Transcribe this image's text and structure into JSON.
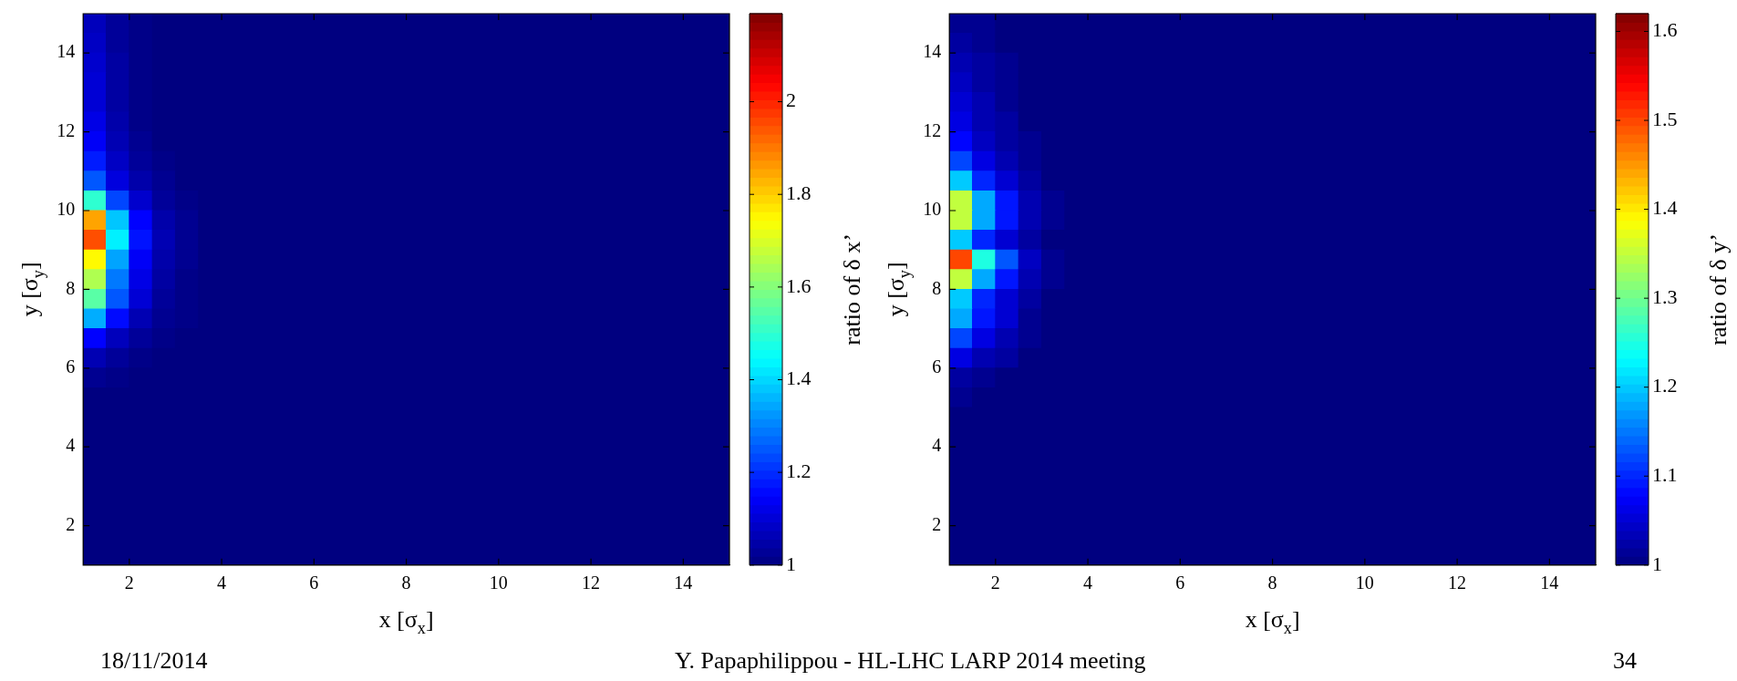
{
  "chart_data": [
    {
      "type": "heatmap",
      "xlabel": "x [σ$_{x}$]",
      "ylabel": "y [σ$_{y}$]",
      "clabel": "ratio of δ x’",
      "xlim": [
        1,
        15
      ],
      "ylim": [
        1,
        15
      ],
      "xticks": [
        2,
        4,
        6,
        8,
        10,
        12,
        14
      ],
      "yticks": [
        2,
        4,
        6,
        8,
        10,
        12,
        14
      ],
      "clim": [
        1,
        2.19
      ],
      "cticks": [
        1,
        1.2,
        1.4,
        1.6,
        1.8,
        2
      ],
      "annotations": [
        "18/11/2014",
        "Y. Papaphilippou - HL-LHC LARP 2014 meeting",
        "34"
      ],
      "x": [
        1.25,
        1.75,
        2.25,
        2.75,
        3.25,
        3.75,
        4.25,
        4.75,
        5.25,
        5.75,
        6.25,
        6.75,
        7.25,
        7.75,
        8.25,
        8.75,
        9.25,
        9.75,
        10.25,
        10.75,
        11.25,
        11.75,
        12.25,
        12.75,
        13.25,
        13.75,
        14.25,
        14.75
      ],
      "y": [
        14.75,
        14.25,
        13.75,
        13.25,
        12.75,
        12.25,
        11.75,
        11.25,
        10.75,
        10.25,
        9.75,
        9.25,
        8.75,
        8.25,
        7.75,
        7.25,
        6.75,
        6.25,
        5.75,
        5.25,
        4.75,
        4.25,
        3.75,
        3.25,
        2.75,
        2.25,
        1.75,
        1.25
      ],
      "cells": [
        [
          1.07,
          1.03,
          1.01,
          1,
          1,
          1,
          1,
          1,
          1,
          1,
          1,
          1,
          1,
          1,
          1,
          1,
          1,
          1,
          1,
          1,
          1,
          1,
          1,
          1,
          1,
          1,
          1,
          1
        ],
        [
          1.08,
          1.03,
          1.01,
          1,
          1,
          1,
          1,
          1,
          1,
          1,
          1,
          1,
          1,
          1,
          1,
          1,
          1,
          1,
          1,
          1,
          1,
          1,
          1,
          1,
          1,
          1,
          1,
          1
        ],
        [
          1.09,
          1.04,
          1.01,
          1,
          1,
          1,
          1,
          1,
          1,
          1,
          1,
          1,
          1,
          1,
          1,
          1,
          1,
          1,
          1,
          1,
          1,
          1,
          1,
          1,
          1,
          1,
          1,
          1
        ],
        [
          1.1,
          1.04,
          1.01,
          1,
          1,
          1,
          1,
          1,
          1,
          1,
          1,
          1,
          1,
          1,
          1,
          1,
          1,
          1,
          1,
          1,
          1,
          1,
          1,
          1,
          1,
          1,
          1,
          1
        ],
        [
          1.1,
          1.04,
          1.01,
          1,
          1,
          1,
          1,
          1,
          1,
          1,
          1,
          1,
          1,
          1,
          1,
          1,
          1,
          1,
          1,
          1,
          1,
          1,
          1,
          1,
          1,
          1,
          1,
          1
        ],
        [
          1.12,
          1.05,
          1.01,
          1,
          1,
          1,
          1,
          1,
          1,
          1,
          1,
          1,
          1,
          1,
          1,
          1,
          1,
          1,
          1,
          1,
          1,
          1,
          1,
          1,
          1,
          1,
          1,
          1
        ],
        [
          1.14,
          1.06,
          1.02,
          1,
          1,
          1,
          1,
          1,
          1,
          1,
          1,
          1,
          1,
          1,
          1,
          1,
          1,
          1,
          1,
          1,
          1,
          1,
          1,
          1,
          1,
          1,
          1,
          1
        ],
        [
          1.18,
          1.08,
          1.03,
          1.01,
          1,
          1,
          1,
          1,
          1,
          1,
          1,
          1,
          1,
          1,
          1,
          1,
          1,
          1,
          1,
          1,
          1,
          1,
          1,
          1,
          1,
          1,
          1,
          1
        ],
        [
          1.25,
          1.11,
          1.05,
          1.02,
          1,
          1,
          1,
          1,
          1,
          1,
          1,
          1,
          1,
          1,
          1,
          1,
          1,
          1,
          1,
          1,
          1,
          1,
          1,
          1,
          1,
          1,
          1,
          1
        ],
        [
          1.5,
          1.23,
          1.09,
          1.03,
          1.01,
          1,
          1,
          1,
          1,
          1,
          1,
          1,
          1,
          1,
          1,
          1,
          1,
          1,
          1,
          1,
          1,
          1,
          1,
          1,
          1,
          1,
          1,
          1
        ],
        [
          1.85,
          1.38,
          1.15,
          1.05,
          1.02,
          1,
          1,
          1,
          1,
          1,
          1,
          1,
          1,
          1,
          1,
          1,
          1,
          1,
          1,
          1,
          1,
          1,
          1,
          1,
          1,
          1,
          1,
          1
        ],
        [
          1.95,
          1.43,
          1.17,
          1.06,
          1.02,
          1,
          1,
          1,
          1,
          1,
          1,
          1,
          1,
          1,
          1,
          1,
          1,
          1,
          1,
          1,
          1,
          1,
          1,
          1,
          1,
          1,
          1,
          1
        ],
        [
          1.75,
          1.34,
          1.14,
          1.05,
          1.02,
          1,
          1,
          1,
          1,
          1,
          1,
          1,
          1,
          1,
          1,
          1,
          1,
          1,
          1,
          1,
          1,
          1,
          1,
          1,
          1,
          1,
          1,
          1
        ],
        [
          1.65,
          1.29,
          1.12,
          1.04,
          1.01,
          1,
          1,
          1,
          1,
          1,
          1,
          1,
          1,
          1,
          1,
          1,
          1,
          1,
          1,
          1,
          1,
          1,
          1,
          1,
          1,
          1,
          1,
          1
        ],
        [
          1.55,
          1.25,
          1.1,
          1.03,
          1.01,
          1,
          1,
          1,
          1,
          1,
          1,
          1,
          1,
          1,
          1,
          1,
          1,
          1,
          1,
          1,
          1,
          1,
          1,
          1,
          1,
          1,
          1,
          1
        ],
        [
          1.35,
          1.16,
          1.06,
          1.02,
          1.01,
          1,
          1,
          1,
          1,
          1,
          1,
          1,
          1,
          1,
          1,
          1,
          1,
          1,
          1,
          1,
          1,
          1,
          1,
          1,
          1,
          1,
          1,
          1
        ],
        [
          1.15,
          1.07,
          1.03,
          1.01,
          1,
          1,
          1,
          1,
          1,
          1,
          1,
          1,
          1,
          1,
          1,
          1,
          1,
          1,
          1,
          1,
          1,
          1,
          1,
          1,
          1,
          1,
          1,
          1
        ],
        [
          1.06,
          1.03,
          1.01,
          1,
          1,
          1,
          1,
          1,
          1,
          1,
          1,
          1,
          1,
          1,
          1,
          1,
          1,
          1,
          1,
          1,
          1,
          1,
          1,
          1,
          1,
          1,
          1,
          1
        ],
        [
          1.02,
          1.01,
          1,
          1,
          1,
          1,
          1,
          1,
          1,
          1,
          1,
          1,
          1,
          1,
          1,
          1,
          1,
          1,
          1,
          1,
          1,
          1,
          1,
          1,
          1,
          1,
          1,
          1
        ],
        [
          1,
          1,
          1,
          1,
          1,
          1,
          1,
          1,
          1,
          1,
          1,
          1,
          1,
          1,
          1,
          1,
          1,
          1,
          1,
          1,
          1,
          1,
          1,
          1,
          1,
          1,
          1,
          1
        ],
        [
          1,
          1,
          1,
          1,
          1,
          1,
          1,
          1,
          1,
          1,
          1,
          1,
          1,
          1,
          1,
          1,
          1,
          1,
          1,
          1,
          1,
          1,
          1,
          1,
          1,
          1,
          1,
          1
        ],
        [
          1,
          1,
          1,
          1,
          1,
          1,
          1,
          1,
          1,
          1,
          1,
          1,
          1,
          1,
          1,
          1,
          1,
          1,
          1,
          1,
          1,
          1,
          1,
          1,
          1,
          1,
          1,
          1
        ],
        [
          1,
          1,
          1,
          1,
          1,
          1,
          1,
          1,
          1,
          1,
          1,
          1,
          1,
          1,
          1,
          1,
          1,
          1,
          1,
          1,
          1,
          1,
          1,
          1,
          1,
          1,
          1,
          1
        ],
        [
          1,
          1,
          1,
          1,
          1,
          1,
          1,
          1,
          1,
          1,
          1,
          1,
          1,
          1,
          1,
          1,
          1,
          1,
          1,
          1,
          1,
          1,
          1,
          1,
          1,
          1,
          1,
          1
        ],
        [
          1,
          1,
          1,
          1,
          1,
          1,
          1,
          1,
          1,
          1,
          1,
          1,
          1,
          1,
          1,
          1,
          1,
          1,
          1,
          1,
          1,
          1,
          1,
          1,
          1,
          1,
          1,
          1
        ],
        [
          1,
          1,
          1,
          1,
          1,
          1,
          1,
          1,
          1,
          1,
          1,
          1,
          1,
          1,
          1,
          1,
          1,
          1,
          1,
          1,
          1,
          1,
          1,
          1,
          1,
          1,
          1,
          1
        ],
        [
          1,
          1,
          1,
          1,
          1,
          1,
          1,
          1,
          1,
          1,
          1,
          1,
          1,
          1,
          1,
          1,
          1,
          1,
          1,
          1,
          1,
          1,
          1,
          1,
          1,
          1,
          1,
          1
        ],
        [
          1,
          1,
          1,
          1,
          1,
          1,
          1,
          1,
          1,
          1,
          1,
          1,
          1,
          1,
          1,
          1,
          1,
          1,
          1,
          1,
          1,
          1,
          1,
          1,
          1,
          1,
          1,
          1
        ]
      ]
    },
    {
      "type": "heatmap",
      "xlabel": "x [σ$_{x}$]",
      "ylabel": "y [σ$_{y}$]",
      "clabel": "ratio of δ y’",
      "xlim": [
        1,
        15
      ],
      "ylim": [
        1,
        15
      ],
      "xticks": [
        2,
        4,
        6,
        8,
        10,
        12,
        14
      ],
      "yticks": [
        2,
        4,
        6,
        8,
        10,
        12,
        14
      ],
      "clim": [
        1,
        1.62
      ],
      "cticks": [
        1,
        1.1,
        1.2,
        1.3,
        1.4,
        1.5,
        1.6
      ],
      "x": [
        1.25,
        1.75,
        2.25,
        2.75,
        3.25,
        3.75,
        4.25,
        4.75,
        5.25,
        5.75,
        6.25,
        6.75,
        7.25,
        7.75,
        8.25,
        8.75,
        9.25,
        9.75,
        10.25,
        10.75,
        11.25,
        11.75,
        12.25,
        12.75,
        13.25,
        13.75,
        14.25,
        14.75
      ],
      "y": [
        14.75,
        14.25,
        13.75,
        13.25,
        12.75,
        12.25,
        11.75,
        11.25,
        10.75,
        10.25,
        9.75,
        9.25,
        8.75,
        8.25,
        7.75,
        7.25,
        6.75,
        6.25,
        5.75,
        5.25,
        4.75,
        4.25,
        3.75,
        3.25,
        2.75,
        2.25,
        1.75,
        1.25
      ],
      "cells": [
        [
          1.01,
          1.01,
          1,
          1,
          1,
          1,
          1,
          1,
          1,
          1,
          1,
          1,
          1,
          1,
          1,
          1,
          1,
          1,
          1,
          1,
          1,
          1,
          1,
          1,
          1,
          1,
          1,
          1
        ],
        [
          1.02,
          1.01,
          1,
          1,
          1,
          1,
          1,
          1,
          1,
          1,
          1,
          1,
          1,
          1,
          1,
          1,
          1,
          1,
          1,
          1,
          1,
          1,
          1,
          1,
          1,
          1,
          1,
          1
        ],
        [
          1.03,
          1.02,
          1.01,
          1,
          1,
          1,
          1,
          1,
          1,
          1,
          1,
          1,
          1,
          1,
          1,
          1,
          1,
          1,
          1,
          1,
          1,
          1,
          1,
          1,
          1,
          1,
          1,
          1
        ],
        [
          1.04,
          1.02,
          1.01,
          1,
          1,
          1,
          1,
          1,
          1,
          1,
          1,
          1,
          1,
          1,
          1,
          1,
          1,
          1,
          1,
          1,
          1,
          1,
          1,
          1,
          1,
          1,
          1,
          1
        ],
        [
          1.05,
          1.03,
          1.01,
          1,
          1,
          1,
          1,
          1,
          1,
          1,
          1,
          1,
          1,
          1,
          1,
          1,
          1,
          1,
          1,
          1,
          1,
          1,
          1,
          1,
          1,
          1,
          1,
          1
        ],
        [
          1.06,
          1.03,
          1.02,
          1,
          1,
          1,
          1,
          1,
          1,
          1,
          1,
          1,
          1,
          1,
          1,
          1,
          1,
          1,
          1,
          1,
          1,
          1,
          1,
          1,
          1,
          1,
          1,
          1
        ],
        [
          1.08,
          1.04,
          1.02,
          1.01,
          1,
          1,
          1,
          1,
          1,
          1,
          1,
          1,
          1,
          1,
          1,
          1,
          1,
          1,
          1,
          1,
          1,
          1,
          1,
          1,
          1,
          1,
          1,
          1
        ],
        [
          1.12,
          1.06,
          1.03,
          1.01,
          1,
          1,
          1,
          1,
          1,
          1,
          1,
          1,
          1,
          1,
          1,
          1,
          1,
          1,
          1,
          1,
          1,
          1,
          1,
          1,
          1,
          1,
          1,
          1
        ],
        [
          1.2,
          1.1,
          1.05,
          1.02,
          1,
          1,
          1,
          1,
          1,
          1,
          1,
          1,
          1,
          1,
          1,
          1,
          1,
          1,
          1,
          1,
          1,
          1,
          1,
          1,
          1,
          1,
          1,
          1
        ],
        [
          1.35,
          1.18,
          1.09,
          1.03,
          1.01,
          1,
          1,
          1,
          1,
          1,
          1,
          1,
          1,
          1,
          1,
          1,
          1,
          1,
          1,
          1,
          1,
          1,
          1,
          1,
          1,
          1,
          1,
          1
        ],
        [
          1.35,
          1.18,
          1.09,
          1.03,
          1.01,
          1,
          1,
          1,
          1,
          1,
          1,
          1,
          1,
          1,
          1,
          1,
          1,
          1,
          1,
          1,
          1,
          1,
          1,
          1,
          1,
          1,
          1,
          1
        ],
        [
          1.2,
          1.1,
          1.05,
          1.02,
          1,
          1,
          1,
          1,
          1,
          1,
          1,
          1,
          1,
          1,
          1,
          1,
          1,
          1,
          1,
          1,
          1,
          1,
          1,
          1,
          1,
          1,
          1,
          1
        ],
        [
          1.5,
          1.25,
          1.13,
          1.04,
          1.01,
          1,
          1,
          1,
          1,
          1,
          1,
          1,
          1,
          1,
          1,
          1,
          1,
          1,
          1,
          1,
          1,
          1,
          1,
          1,
          1,
          1,
          1,
          1
        ],
        [
          1.35,
          1.18,
          1.09,
          1.03,
          1.01,
          1,
          1,
          1,
          1,
          1,
          1,
          1,
          1,
          1,
          1,
          1,
          1,
          1,
          1,
          1,
          1,
          1,
          1,
          1,
          1,
          1,
          1,
          1
        ],
        [
          1.2,
          1.1,
          1.05,
          1.02,
          1,
          1,
          1,
          1,
          1,
          1,
          1,
          1,
          1,
          1,
          1,
          1,
          1,
          1,
          1,
          1,
          1,
          1,
          1,
          1,
          1,
          1,
          1,
          1
        ],
        [
          1.18,
          1.09,
          1.05,
          1.01,
          1,
          1,
          1,
          1,
          1,
          1,
          1,
          1,
          1,
          1,
          1,
          1,
          1,
          1,
          1,
          1,
          1,
          1,
          1,
          1,
          1,
          1,
          1,
          1
        ],
        [
          1.12,
          1.06,
          1.03,
          1.01,
          1,
          1,
          1,
          1,
          1,
          1,
          1,
          1,
          1,
          1,
          1,
          1,
          1,
          1,
          1,
          1,
          1,
          1,
          1,
          1,
          1,
          1,
          1,
          1
        ],
        [
          1.06,
          1.03,
          1.02,
          1,
          1,
          1,
          1,
          1,
          1,
          1,
          1,
          1,
          1,
          1,
          1,
          1,
          1,
          1,
          1,
          1,
          1,
          1,
          1,
          1,
          1,
          1,
          1,
          1
        ],
        [
          1.02,
          1.01,
          1,
          1,
          1,
          1,
          1,
          1,
          1,
          1,
          1,
          1,
          1,
          1,
          1,
          1,
          1,
          1,
          1,
          1,
          1,
          1,
          1,
          1,
          1,
          1,
          1,
          1
        ],
        [
          1.01,
          1,
          1,
          1,
          1,
          1,
          1,
          1,
          1,
          1,
          1,
          1,
          1,
          1,
          1,
          1,
          1,
          1,
          1,
          1,
          1,
          1,
          1,
          1,
          1,
          1,
          1,
          1
        ],
        [
          1,
          1,
          1,
          1,
          1,
          1,
          1,
          1,
          1,
          1,
          1,
          1,
          1,
          1,
          1,
          1,
          1,
          1,
          1,
          1,
          1,
          1,
          1,
          1,
          1,
          1,
          1,
          1
        ],
        [
          1,
          1,
          1,
          1,
          1,
          1,
          1,
          1,
          1,
          1,
          1,
          1,
          1,
          1,
          1,
          1,
          1,
          1,
          1,
          1,
          1,
          1,
          1,
          1,
          1,
          1,
          1,
          1
        ],
        [
          1,
          1,
          1,
          1,
          1,
          1,
          1,
          1,
          1,
          1,
          1,
          1,
          1,
          1,
          1,
          1,
          1,
          1,
          1,
          1,
          1,
          1,
          1,
          1,
          1,
          1,
          1,
          1
        ],
        [
          1,
          1,
          1,
          1,
          1,
          1,
          1,
          1,
          1,
          1,
          1,
          1,
          1,
          1,
          1,
          1,
          1,
          1,
          1,
          1,
          1,
          1,
          1,
          1,
          1,
          1,
          1,
          1
        ],
        [
          1,
          1,
          1,
          1,
          1,
          1,
          1,
          1,
          1,
          1,
          1,
          1,
          1,
          1,
          1,
          1,
          1,
          1,
          1,
          1,
          1,
          1,
          1,
          1,
          1,
          1,
          1,
          1
        ],
        [
          1,
          1,
          1,
          1,
          1,
          1,
          1,
          1,
          1,
          1,
          1,
          1,
          1,
          1,
          1,
          1,
          1,
          1,
          1,
          1,
          1,
          1,
          1,
          1,
          1,
          1,
          1,
          1
        ],
        [
          1,
          1,
          1,
          1,
          1,
          1,
          1,
          1,
          1,
          1,
          1,
          1,
          1,
          1,
          1,
          1,
          1,
          1,
          1,
          1,
          1,
          1,
          1,
          1,
          1,
          1,
          1,
          1
        ],
        [
          1,
          1,
          1,
          1,
          1,
          1,
          1,
          1,
          1,
          1,
          1,
          1,
          1,
          1,
          1,
          1,
          1,
          1,
          1,
          1,
          1,
          1,
          1,
          1,
          1,
          1,
          1,
          1
        ]
      ]
    }
  ]
}
